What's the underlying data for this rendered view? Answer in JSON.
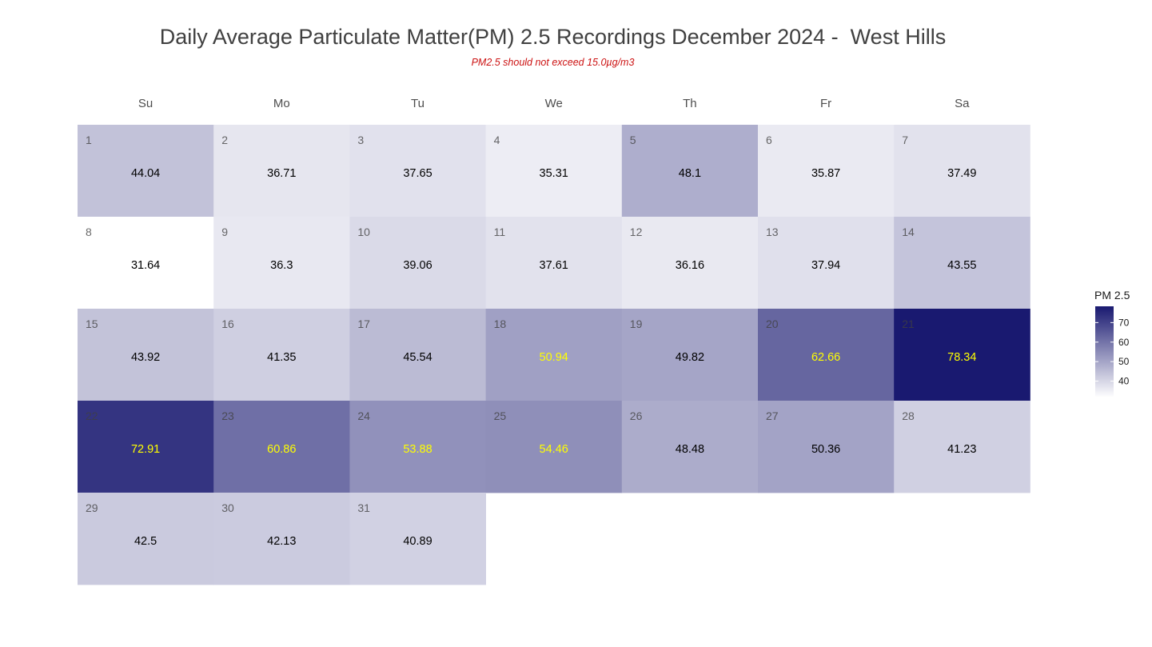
{
  "chart_data": {
    "type": "heatmap",
    "subtype": "calendar",
    "title": "Daily Average Particulate Matter(PM) 2.5 Recordings December 2024 -  West Hills",
    "subtitle": "PM2.5 should not exceed 15.0µg/m3",
    "weekdays": [
      "Su",
      "Mo",
      "Tu",
      "We",
      "Th",
      "Fr",
      "Sa"
    ],
    "first_weekday_index": 0,
    "days": [
      {
        "day": 1,
        "value": 44.04,
        "label": "44.04"
      },
      {
        "day": 2,
        "value": 36.71,
        "label": "36.71"
      },
      {
        "day": 3,
        "value": 37.65,
        "label": "37.65"
      },
      {
        "day": 4,
        "value": 35.31,
        "label": "35.31"
      },
      {
        "day": 5,
        "value": 48.1,
        "label": "48.1"
      },
      {
        "day": 6,
        "value": 35.87,
        "label": "35.87"
      },
      {
        "day": 7,
        "value": 37.49,
        "label": "37.49"
      },
      {
        "day": 8,
        "value": 31.64,
        "label": "31.64"
      },
      {
        "day": 9,
        "value": 36.3,
        "label": "36.3"
      },
      {
        "day": 10,
        "value": 39.06,
        "label": "39.06"
      },
      {
        "day": 11,
        "value": 37.61,
        "label": "37.61"
      },
      {
        "day": 12,
        "value": 36.16,
        "label": "36.16"
      },
      {
        "day": 13,
        "value": 37.94,
        "label": "37.94"
      },
      {
        "day": 14,
        "value": 43.55,
        "label": "43.55"
      },
      {
        "day": 15,
        "value": 43.92,
        "label": "43.92"
      },
      {
        "day": 16,
        "value": 41.35,
        "label": "41.35"
      },
      {
        "day": 17,
        "value": 45.54,
        "label": "45.54"
      },
      {
        "day": 18,
        "value": 50.94,
        "label": "50.94"
      },
      {
        "day": 19,
        "value": 49.82,
        "label": "49.82"
      },
      {
        "day": 20,
        "value": 62.66,
        "label": "62.66"
      },
      {
        "day": 21,
        "value": 78.34,
        "label": "78.34"
      },
      {
        "day": 22,
        "value": 72.91,
        "label": "72.91"
      },
      {
        "day": 23,
        "value": 60.86,
        "label": "60.86"
      },
      {
        "day": 24,
        "value": 53.88,
        "label": "53.88"
      },
      {
        "day": 25,
        "value": 54.46,
        "label": "54.46"
      },
      {
        "day": 26,
        "value": 48.48,
        "label": "48.48"
      },
      {
        "day": 27,
        "value": 50.36,
        "label": "50.36"
      },
      {
        "day": 28,
        "value": 41.23,
        "label": "41.23"
      },
      {
        "day": 29,
        "value": 42.5,
        "label": "42.5"
      },
      {
        "day": 30,
        "value": 42.13,
        "label": "42.13"
      },
      {
        "day": 31,
        "value": 40.89,
        "label": "40.89"
      }
    ],
    "highlighted_days": [
      18,
      20,
      21,
      22,
      23,
      24,
      25
    ],
    "scale": {
      "min": 31.64,
      "max": 78.34,
      "low_color": "#ffffff",
      "high_color": "#191970",
      "highlight_label_color": "#ffff00",
      "label_color": "#000000"
    },
    "legend": {
      "title": "PM 2.5",
      "ticks": [
        40,
        50,
        60,
        70
      ],
      "placement": "right"
    }
  }
}
